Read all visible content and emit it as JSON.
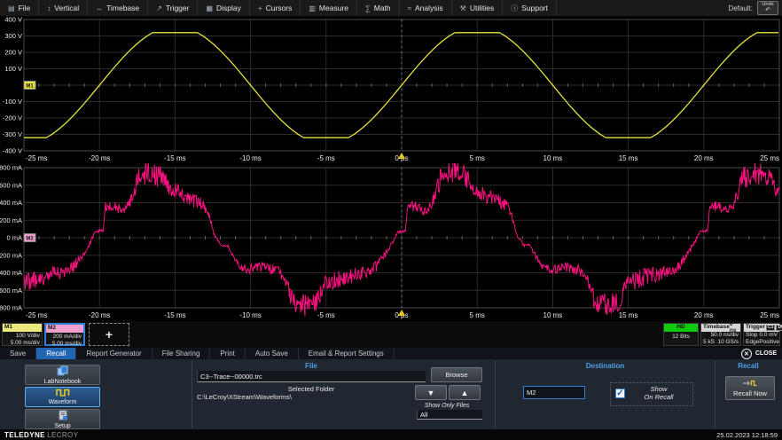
{
  "menu": {
    "items": [
      {
        "label": "File",
        "icon": "▤",
        "icon_name": "file-icon"
      },
      {
        "label": "Vertical",
        "icon": "↕",
        "icon_name": "vertical-arrows-icon"
      },
      {
        "label": "Timebase",
        "icon": "↔",
        "icon_name": "horizontal-arrows-icon"
      },
      {
        "label": "Trigger",
        "icon": "↗",
        "icon_name": "trigger-slope-icon"
      },
      {
        "label": "Display",
        "icon": "▦",
        "icon_name": "display-grid-icon"
      },
      {
        "label": "Cursors",
        "icon": "+",
        "icon_name": "cursor-crosshair-icon"
      },
      {
        "label": "Measure",
        "icon": "▥",
        "icon_name": "measure-ruler-icon"
      },
      {
        "label": "Math",
        "icon": "∑",
        "icon_name": "math-sigma-icon"
      },
      {
        "label": "Analysis",
        "icon": "≈",
        "icon_name": "analysis-wave-icon"
      },
      {
        "label": "Utilities",
        "icon": "⚒",
        "icon_name": "utilities-tools-icon"
      },
      {
        "label": "Support",
        "icon": "ⓘ",
        "icon_name": "support-info-icon"
      }
    ],
    "default_label": "Default:",
    "undo_label": "Undo",
    "undo_icon": "↶"
  },
  "chart_data": [
    {
      "type": "line",
      "name": "m1-voltage",
      "legend": "M1",
      "color": "#e6e23c",
      "x_unit": "ms",
      "x_range": [
        -25,
        25
      ],
      "y_unit": "V",
      "y_range": [
        -400,
        400
      ],
      "divisions": {
        "x": 10,
        "y": 8
      },
      "grid": true,
      "x_ticks": [
        [
          -25,
          "-25 ms"
        ],
        [
          -20,
          "-20 ms"
        ],
        [
          -15,
          "-15 ms"
        ],
        [
          -10,
          "-10 ms"
        ],
        [
          -5,
          "-5 ms"
        ],
        [
          0,
          "0 µs"
        ],
        [
          5,
          "5 ms"
        ],
        [
          10,
          "10 ms"
        ],
        [
          15,
          "15 ms"
        ],
        [
          20,
          "20 ms"
        ],
        [
          25,
          "25 ms"
        ]
      ],
      "y_ticks": [
        [
          400,
          "400 V"
        ],
        [
          300,
          "300 V"
        ],
        [
          200,
          "200 V"
        ],
        [
          100,
          "100 V"
        ],
        [
          -100,
          "-100 V"
        ],
        [
          -200,
          "-200 V"
        ],
        [
          -300,
          "-300 V"
        ],
        [
          -400,
          "-400 V"
        ]
      ],
      "zero_badge": {
        "label": "M1",
        "color": "#e6e23c"
      },
      "trigger_time": 0,
      "model": {
        "kind": "clipped_sine",
        "period_ms": 20,
        "amplitude": 358,
        "clip": 320,
        "phase_ms": 0
      }
    },
    {
      "type": "noisy_line",
      "name": "m2-current",
      "legend": "M2",
      "color": "#f5127e",
      "x_unit": "ms",
      "x_range": [
        -25,
        25
      ],
      "y_unit": "mA",
      "y_range": [
        -800,
        800
      ],
      "divisions": {
        "x": 10,
        "y": 8
      },
      "grid": true,
      "x_ticks": [
        [
          -25,
          "-25 ms"
        ],
        [
          -20,
          "-20 ms"
        ],
        [
          -15,
          "-15 ms"
        ],
        [
          -10,
          "-10 ms"
        ],
        [
          -5,
          "-5 ms"
        ],
        [
          0,
          "0 µs"
        ],
        [
          5,
          "5 ms"
        ],
        [
          10,
          "10 ms"
        ],
        [
          15,
          "15 ms"
        ],
        [
          20,
          "20 ms"
        ],
        [
          25,
          "25 ms"
        ]
      ],
      "y_ticks": [
        [
          800,
          "800 mA"
        ],
        [
          600,
          "600 mA"
        ],
        [
          400,
          "400 mA"
        ],
        [
          200,
          "200 mA"
        ],
        [
          0,
          "0 mA"
        ],
        [
          -200,
          "-200 mA"
        ],
        [
          -400,
          "-400 mA"
        ],
        [
          -600,
          "-600 mA"
        ],
        [
          -800,
          "-800 mA"
        ]
      ],
      "zero_badge": {
        "label": "M2",
        "color": "#f0a0cf"
      },
      "trigger_time": 0,
      "model": {
        "kind": "periodic_keypoints",
        "period_ms": 20,
        "noise_seed": 20230225,
        "keypoints": [
          [
            0,
            80,
            15
          ],
          [
            0.25,
            80,
            15
          ],
          [
            0.4,
            360,
            50
          ],
          [
            1.0,
            355,
            60
          ],
          [
            1.6,
            300,
            50
          ],
          [
            2.0,
            390,
            60
          ],
          [
            2.6,
            680,
            130
          ],
          [
            3.4,
            745,
            140
          ],
          [
            4.3,
            690,
            130
          ],
          [
            4.7,
            560,
            90
          ],
          [
            5.6,
            480,
            90
          ],
          [
            6.8,
            385,
            80
          ],
          [
            7.2,
            300,
            45
          ],
          [
            7.6,
            30,
            20
          ],
          [
            8.1,
            -85,
            15
          ],
          [
            8.5,
            -90,
            15
          ],
          [
            8.9,
            -220,
            40
          ],
          [
            9.3,
            -335,
            30
          ],
          [
            9.7,
            -370,
            60
          ],
          [
            10.8,
            -335,
            60
          ],
          [
            11.8,
            -370,
            60
          ],
          [
            12.3,
            -480,
            70
          ],
          [
            12.8,
            -730,
            120
          ],
          [
            13.6,
            -765,
            130
          ],
          [
            14.4,
            -715,
            120
          ],
          [
            14.9,
            -520,
            80
          ],
          [
            15.4,
            -500,
            110
          ],
          [
            16.1,
            -450,
            100
          ],
          [
            16.9,
            -420,
            90
          ],
          [
            17.6,
            -395,
            80
          ],
          [
            18.3,
            -330,
            70
          ],
          [
            18.9,
            -195,
            40
          ],
          [
            19.4,
            -55,
            25
          ],
          [
            19.7,
            60,
            20
          ],
          [
            20,
            80,
            15
          ]
        ]
      }
    }
  ],
  "descriptors": {
    "m1": {
      "label": "M1",
      "line1": "100 V/div",
      "line2": "5.00 ms/div"
    },
    "m2": {
      "label": "M2",
      "line1": "200 mA/div",
      "line2": "5.00 ms/div"
    },
    "add": "+",
    "hd": {
      "title": "HD",
      "bits": "12 Bits"
    },
    "timebase": {
      "title": "Timebase",
      "delay": "0 ns",
      "per_div": "50.0 ns/div",
      "samples": "5 kS",
      "rate": "10 GS/s"
    },
    "trigger": {
      "title": "Trigger",
      "source": "C1",
      "coupling": "DC",
      "mode": "Stop",
      "level": "0.0 mV",
      "kind": "Edge",
      "slope": "Positive"
    }
  },
  "tabs": {
    "items": [
      "Save",
      "Recall",
      "Report Generator",
      "File Sharing",
      "Print",
      "Auto Save",
      "Email & Report Settings"
    ],
    "active": "Recall",
    "close_label": "CLOSE",
    "close_icon": "✕"
  },
  "dialog": {
    "side_buttons": [
      {
        "label": "LabNotebook",
        "icon": "labnotebook-icon",
        "active": false
      },
      {
        "label": "Waveform",
        "icon": "waveform-icon",
        "active": true
      },
      {
        "label": "Setup",
        "icon": "setup-icon",
        "active": false
      }
    ],
    "file": {
      "header": "File",
      "filename": "C3--Trace--00000.trc",
      "browse": "Browse",
      "selected_folder_label": "Selected Folder",
      "folder": "C:\\LeCroy\\XStream\\Waveforms\\",
      "down_arrow": "▼",
      "up_arrow": "▲",
      "show_only_files": "Show Only Files",
      "filter": "All"
    },
    "destination": {
      "header": "Destination",
      "value": "M2",
      "checked": true,
      "check_glyph": "✓",
      "show_line1": "Show",
      "show_line2": "On Recall"
    },
    "recall": {
      "header": "Recall",
      "button": "Recall Now"
    }
  },
  "statusbar": {
    "brand_bold": "TELEDYNE",
    "brand_light": "LECROY",
    "datetime": "25.02.2023 12:18:59"
  }
}
